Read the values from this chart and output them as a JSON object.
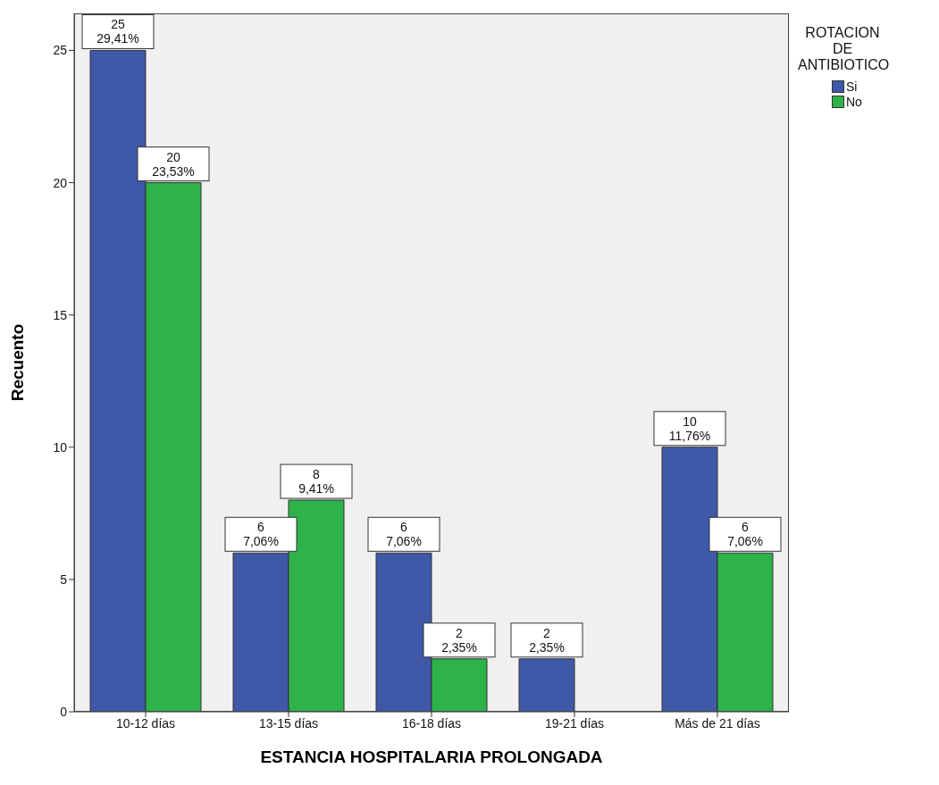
{
  "chart_data": {
    "type": "bar",
    "xlabel": "ESTANCIA HOSPITALARIA PROLONGADA",
    "ylabel": "Recuento",
    "legend_title": "ROTACION DE ANTIBIOTICO",
    "legend": "top right",
    "categories": [
      "10-12 días",
      "13-15 días",
      "16-18 días",
      "19-21 días",
      "Más de 21 días"
    ],
    "series": [
      {
        "name": "Si",
        "color": "#3f58a8",
        "values": [
          25,
          6,
          6,
          2,
          10
        ],
        "value_labels": [
          "25\n29,41%",
          "6\n7,06%",
          "6\n7,06%",
          "2\n2,35%",
          "10\n11,76%"
        ]
      },
      {
        "name": "No",
        "color": "#2db34a",
        "values": [
          20,
          8,
          2,
          null,
          6
        ],
        "value_labels": [
          "20\n23,53%",
          "8\n9,41%",
          "2\n2,35%",
          null,
          "6\n7,06%"
        ]
      }
    ],
    "ylim": [
      0,
      26.4
    ],
    "yticks": [
      0,
      5,
      10,
      15,
      20,
      25
    ]
  }
}
